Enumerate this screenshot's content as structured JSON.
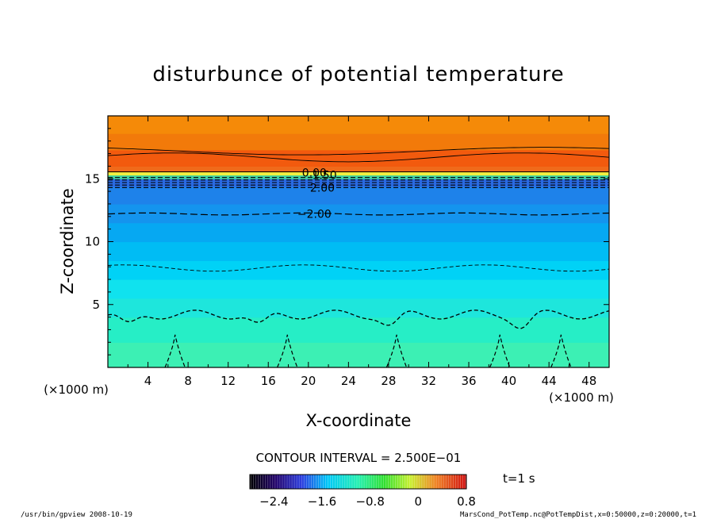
{
  "chart_data": {
    "type": "heatmap",
    "title": "disturbunce of potential temperature",
    "xlabel": "X-coordinate",
    "ylabel": "Z-coordinate",
    "x_unit_left": "(×1000 m)",
    "x_unit_right": "(×1000 m)",
    "xlim": [
      0,
      50
    ],
    "ylim": [
      0,
      20
    ],
    "x_ticks": [
      4,
      8,
      12,
      16,
      20,
      24,
      28,
      32,
      36,
      40,
      44,
      48
    ],
    "y_ticks": [
      5,
      10,
      15
    ],
    "color_bands": [
      {
        "z0": 0,
        "z1": 2,
        "color": "#3cf0b4"
      },
      {
        "z0": 2,
        "z1": 4,
        "color": "#26eec6"
      },
      {
        "z0": 4,
        "z1": 5.5,
        "color": "#1ee6dc"
      },
      {
        "z0": 5.5,
        "z1": 7,
        "color": "#10e2ee"
      },
      {
        "z0": 7,
        "z1": 8.5,
        "color": "#00d2f6"
      },
      {
        "z0": 8.5,
        "z1": 10,
        "color": "#00bcf4"
      },
      {
        "z0": 10,
        "z1": 11.5,
        "color": "#06a8f2"
      },
      {
        "z0": 11.5,
        "z1": 13,
        "color": "#1494ee"
      },
      {
        "z0": 13,
        "z1": 14.4,
        "color": "#1e82ea"
      },
      {
        "z0": 14.4,
        "z1": 15.0,
        "color": "#2a6ae2"
      },
      {
        "z0": 15.0,
        "z1": 15.3,
        "color": "#40d0a0"
      },
      {
        "z0": 15.3,
        "z1": 15.55,
        "color": "#f0f040"
      },
      {
        "z0": 15.55,
        "z1": 16.0,
        "color": "#f06a1a"
      },
      {
        "z0": 16.0,
        "z1": 17.3,
        "color": "#f25a0e"
      },
      {
        "z0": 17.3,
        "z1": 18.6,
        "color": "#f27a0a"
      },
      {
        "z0": 18.6,
        "z1": 20,
        "color": "#f58a08"
      }
    ],
    "contour_labels": [
      {
        "text": "0.00",
        "x": 20.6,
        "z": 15.5
      },
      {
        "text": "1.50",
        "x": 21.6,
        "z": 15.3
      },
      {
        "text": "2.00",
        "x": 21.4,
        "z": 14.3
      },
      {
        "text": "−2.00",
        "x": 20.6,
        "z": 12.2
      }
    ],
    "dashed_levels": [
      14.3,
      14.5,
      14.7,
      14.9,
      15.1
    ],
    "contour_level_low": 12.2,
    "contour_level_mid": 7.9,
    "contour_level_surface": 4.2,
    "contour_interval_text": "CONTOUR INTERVAL = 2.500E−01",
    "colorbar": {
      "ticks": [
        -2.4,
        -1.6,
        -0.8,
        0,
        0.8
      ],
      "tick_labels": [
        "−2.4",
        "−1.6",
        "−0.8",
        "0",
        "0.8"
      ],
      "range": [
        -2.8,
        0.8
      ]
    }
  },
  "time_label": "t=1  s",
  "footer_left": "/usr/bin/gpview   2008-10-19",
  "footer_right": "MarsCond_PotTemp.nc@PotTempDist,x=0:50000,z=0:20000,t=1"
}
